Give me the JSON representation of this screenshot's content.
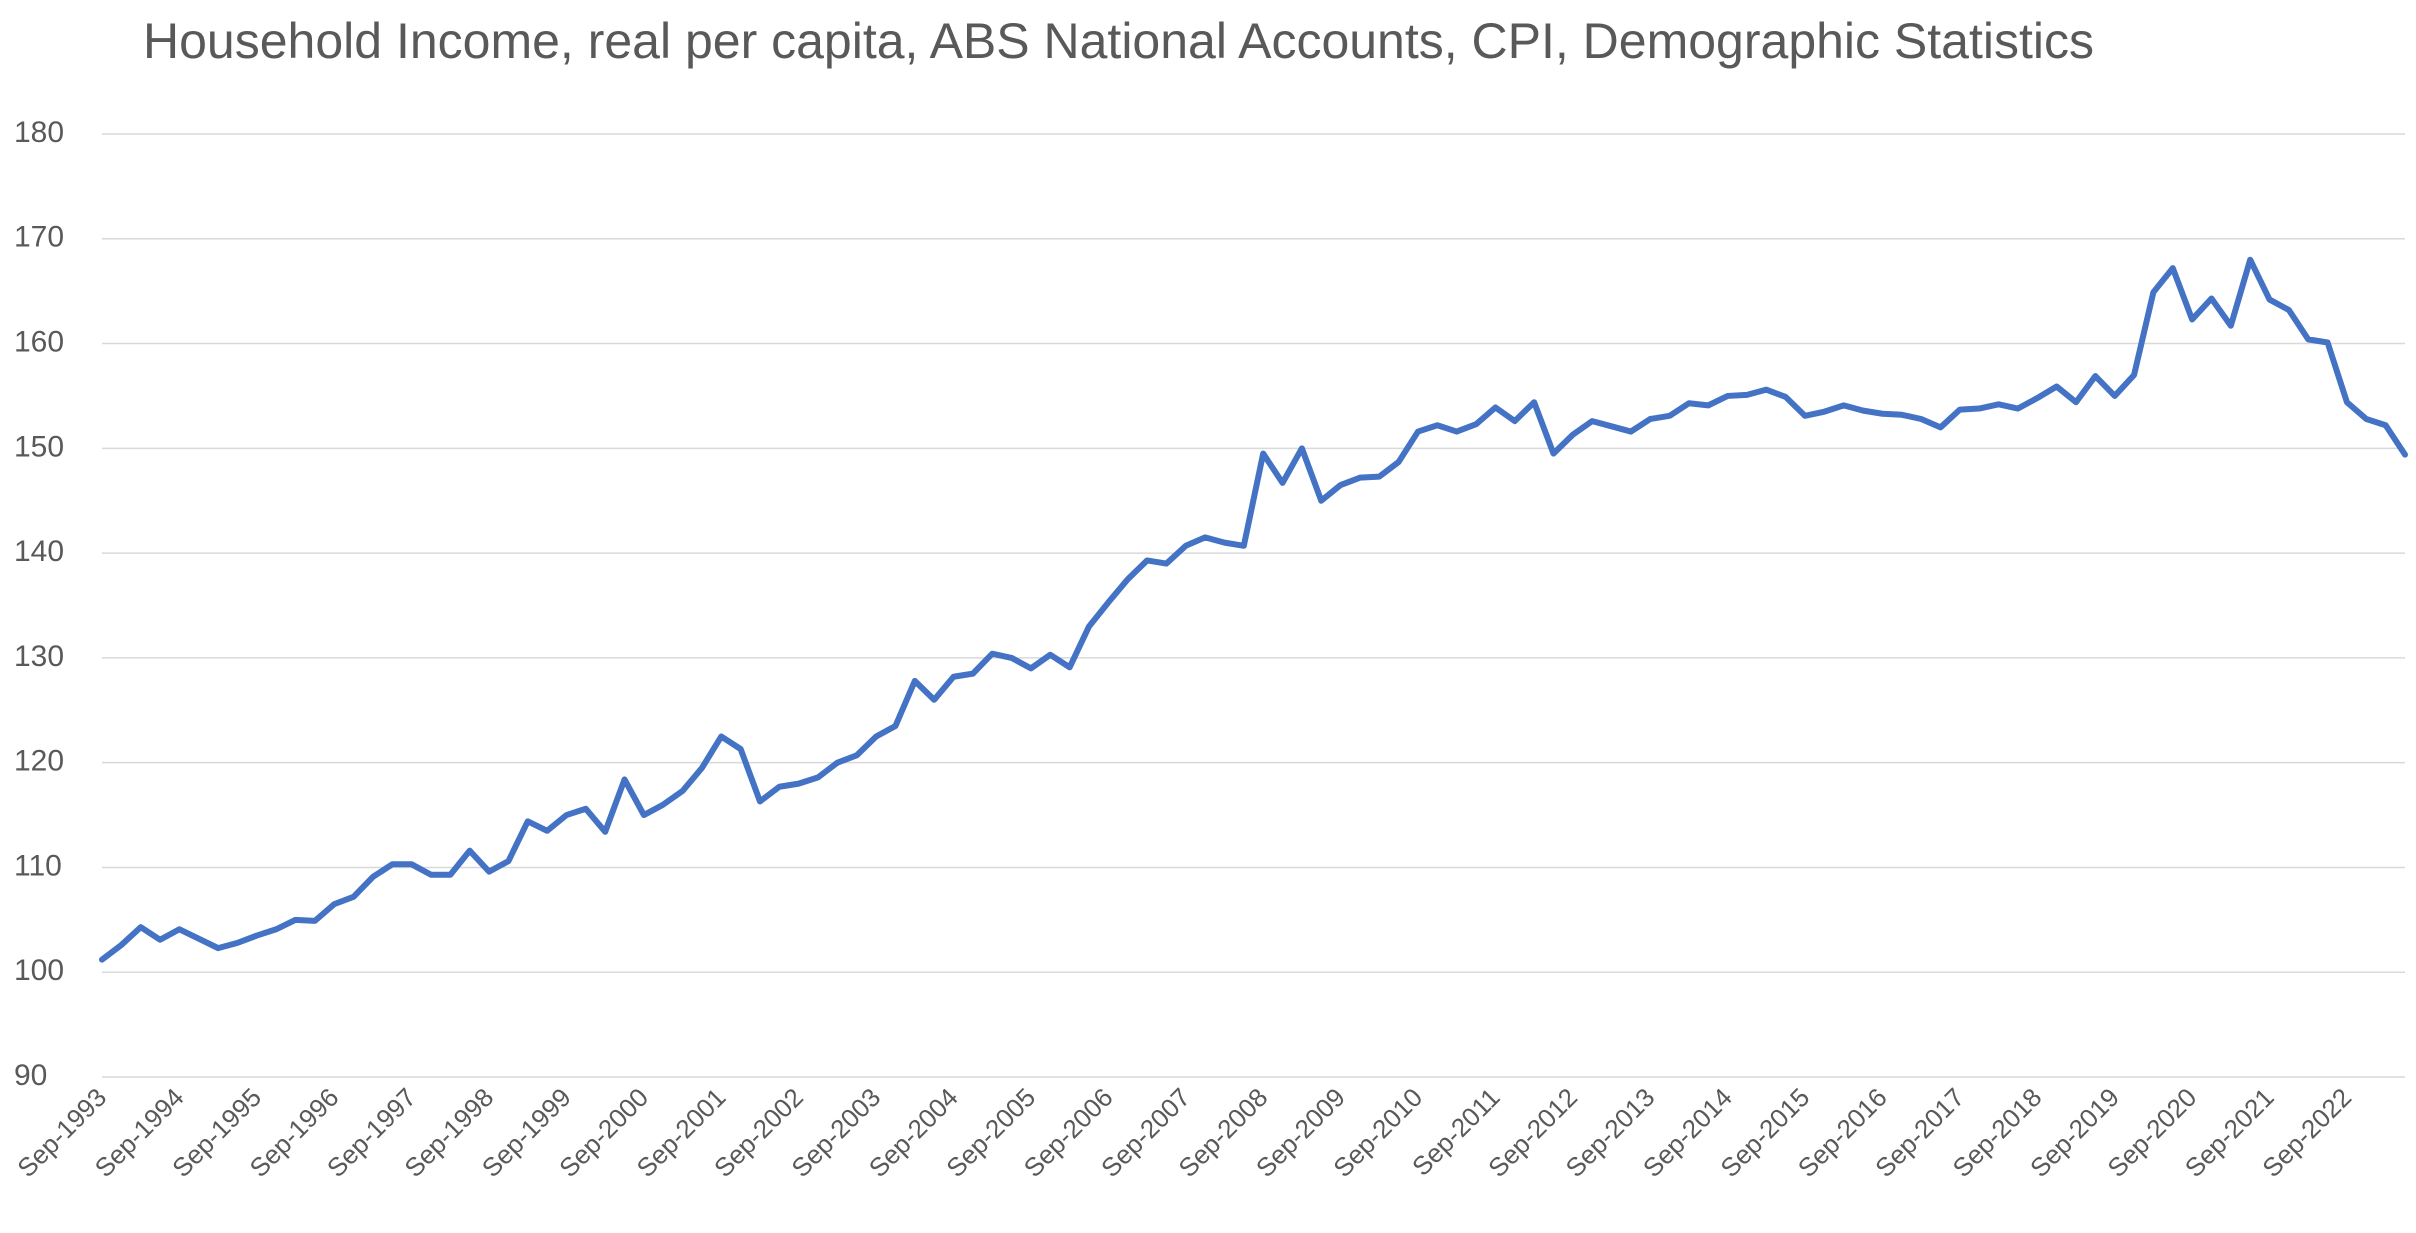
{
  "chart_data": {
    "type": "line",
    "title": "Household Income, real per capita, ABS National Accounts, CPI, Demographic Statistics",
    "categories": [
      "Sep-1993",
      null,
      null,
      null,
      "Sep-1994",
      null,
      null,
      null,
      "Sep-1995",
      null,
      null,
      null,
      "Sep-1996",
      null,
      null,
      null,
      "Sep-1997",
      null,
      null,
      null,
      "Sep-1998",
      null,
      null,
      null,
      "Sep-1999",
      null,
      null,
      null,
      "Sep-2000",
      null,
      null,
      null,
      "Sep-2001",
      null,
      null,
      null,
      "Sep-2002",
      null,
      null,
      null,
      "Sep-2003",
      null,
      null,
      null,
      "Sep-2004",
      null,
      null,
      null,
      "Sep-2005",
      null,
      null,
      null,
      "Sep-2006",
      null,
      null,
      null,
      "Sep-2007",
      null,
      null,
      null,
      "Sep-2008",
      null,
      null,
      null,
      "Sep-2009",
      null,
      null,
      null,
      "Sep-2010",
      null,
      null,
      null,
      "Sep-2011",
      null,
      null,
      null,
      "Sep-2012",
      null,
      null,
      null,
      "Sep-2013",
      null,
      null,
      null,
      "Sep-2014",
      null,
      null,
      null,
      "Sep-2015",
      null,
      null,
      null,
      "Sep-2016",
      null,
      null,
      null,
      "Sep-2017",
      null,
      null,
      null,
      "Sep-2018",
      null,
      null,
      null,
      "Sep-2019",
      null,
      null,
      null,
      "Sep-2020",
      null,
      null,
      null,
      "Sep-2021",
      null,
      null,
      null,
      "Sep-2022",
      null,
      null,
      null
    ],
    "series": [
      {
        "color": "#4472c4",
        "values": [
          101.2,
          102.6,
          104.3,
          103.1,
          104.1,
          103.2,
          102.3,
          102.8,
          103.5,
          104.1,
          105.0,
          104.9,
          106.5,
          107.2,
          109.1,
          110.3,
          110.3,
          109.3,
          109.3,
          111.6,
          109.6,
          110.6,
          114.4,
          113.5,
          115.0,
          115.6,
          113.4,
          118.4,
          115.0,
          116.0,
          117.3,
          119.5,
          122.5,
          121.3,
          116.3,
          117.7,
          118.0,
          118.6,
          120.0,
          120.7,
          122.5,
          123.5,
          127.8,
          126.0,
          128.2,
          128.5,
          130.4,
          130.0,
          129.0,
          130.3,
          129.1,
          133.0,
          135.3,
          137.5,
          139.3,
          139.0,
          140.7,
          141.5,
          141.0,
          140.7,
          149.5,
          146.7,
          150.0,
          145.0,
          146.5,
          147.2,
          147.3,
          148.7,
          151.6,
          152.2,
          151.6,
          152.3,
          153.9,
          152.6,
          154.4,
          149.5,
          151.3,
          152.6,
          152.1,
          151.6,
          152.8,
          153.1,
          154.3,
          154.1,
          155.0,
          155.1,
          155.6,
          154.9,
          153.1,
          153.5,
          154.1,
          153.6,
          153.3,
          153.2,
          152.8,
          152.0,
          153.7,
          153.8,
          154.2,
          153.8,
          154.8,
          155.9,
          154.4,
          156.9,
          155.0,
          157.0,
          164.9,
          167.2,
          162.3,
          164.3,
          161.7,
          168.0,
          164.2,
          163.2,
          160.4,
          160.1,
          154.4,
          152.8,
          152.2,
          149.4
        ]
      }
    ],
    "ylim": [
      90,
      180
    ],
    "yticks": [
      90,
      100,
      110,
      120,
      130,
      140,
      150,
      160,
      170,
      180
    ],
    "grid": true
  }
}
